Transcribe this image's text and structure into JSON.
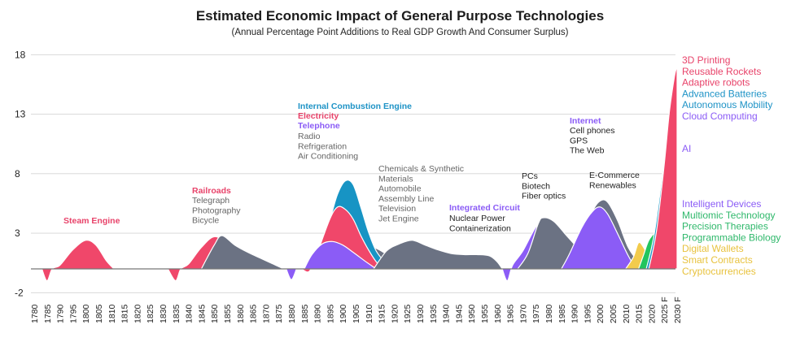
{
  "chart_data": {
    "type": "area",
    "title": "Estimated Economic Impact of General Purpose Technologies",
    "subtitle": "(Annual Percentage Point Additions to Real GDP Growth And Consumer Surplus)",
    "ylim": [
      -2,
      18
    ],
    "yticks": [
      18,
      13,
      8,
      3,
      -2
    ],
    "x_ticks": [
      "1780",
      "1785",
      "1790",
      "1795",
      "1800",
      "1805",
      "1810",
      "1815",
      "1820",
      "1825",
      "1830",
      "1835",
      "1840",
      "1845",
      "1850",
      "1855",
      "1860",
      "1865",
      "1870",
      "1875",
      "1880",
      "1885",
      "1890",
      "1895",
      "1900",
      "1905",
      "1910",
      "1915",
      "1920",
      "1925",
      "1930",
      "1935",
      "1940",
      "1945",
      "1950",
      "1955",
      "1960",
      "1965",
      "1970",
      "1975",
      "1980",
      "1985",
      "1990",
      "1995",
      "2000",
      "2005",
      "2010",
      "2015",
      "2020",
      "2025 F",
      "2030 F"
    ],
    "grid": "horizontal",
    "colors": {
      "pink": "#f0476a",
      "blue": "#1794c4",
      "purple": "#8b5cf6",
      "gray": "#6b7283",
      "green": "#22c55e",
      "teal": "#14b8a6",
      "yellow": "#f2cb4c",
      "pink_label": "#e8436a",
      "blue_label": "#1e93c6",
      "purple_label": "#8b5cf6",
      "green_label": "#2fb86b",
      "yellow_label": "#e8c23d"
    },
    "series": [
      {
        "key": "steam_engine",
        "color": "pink",
        "points": [
          [
            1783,
            0
          ],
          [
            1785,
            -1
          ],
          [
            1787,
            0
          ],
          [
            1790,
            0.3
          ],
          [
            1795,
            1.6
          ],
          [
            1800,
            2.4
          ],
          [
            1804,
            2.0
          ],
          [
            1808,
            0.7
          ],
          [
            1811,
            0
          ]
        ]
      },
      {
        "key": "railroads",
        "color": "pink",
        "points": [
          [
            1832,
            0
          ],
          [
            1835,
            -1
          ],
          [
            1837,
            0
          ],
          [
            1840,
            0.4
          ],
          [
            1845,
            1.8
          ],
          [
            1850,
            2.7
          ],
          [
            1855,
            2.1
          ],
          [
            1859,
            0.8
          ],
          [
            1862,
            0
          ]
        ]
      },
      {
        "key": "railroads_followers",
        "color": "gray",
        "points": [
          [
            1845,
            0
          ],
          [
            1850,
            2.0
          ],
          [
            1853,
            2.8
          ],
          [
            1858,
            2.0
          ],
          [
            1863,
            1.4
          ],
          [
            1868,
            0.9
          ],
          [
            1873,
            0.4
          ],
          [
            1877,
            0
          ]
        ]
      },
      {
        "key": "dip_1880",
        "color": "purple",
        "points": [
          [
            1878,
            0
          ],
          [
            1880,
            -0.9
          ],
          [
            1882,
            0
          ]
        ]
      },
      {
        "key": "ice_gray",
        "color": "gray",
        "points": [
          [
            1886,
            0
          ],
          [
            1890,
            0.9
          ],
          [
            1895,
            2.2
          ],
          [
            1900,
            3.5
          ],
          [
            1903,
            3.9
          ],
          [
            1906,
            3.0
          ],
          [
            1910,
            2.1
          ],
          [
            1915,
            1.5
          ],
          [
            1919,
            0.9
          ],
          [
            1921,
            0
          ]
        ]
      },
      {
        "key": "ice_blue",
        "color": "blue",
        "points": [
          [
            1886,
            0
          ],
          [
            1890,
            1.4
          ],
          [
            1895,
            4.2
          ],
          [
            1898,
            6.3
          ],
          [
            1901,
            7.4
          ],
          [
            1904,
            7.1
          ],
          [
            1907,
            5.2
          ],
          [
            1910,
            3.1
          ],
          [
            1913,
            1.5
          ],
          [
            1917,
            0.4
          ],
          [
            1919,
            0
          ]
        ]
      },
      {
        "key": "electricity",
        "color": "pink",
        "points": [
          [
            1884,
            0
          ],
          [
            1887,
            -0.2
          ],
          [
            1890,
            1.3
          ],
          [
            1895,
            4.2
          ],
          [
            1898,
            5.2
          ],
          [
            1901,
            5.0
          ],
          [
            1904,
            4.2
          ],
          [
            1907,
            2.8
          ],
          [
            1910,
            1.6
          ],
          [
            1913,
            0.6
          ],
          [
            1916,
            0
          ]
        ]
      },
      {
        "key": "telephone",
        "color": "purple",
        "points": [
          [
            1885,
            0
          ],
          [
            1888,
            1.2
          ],
          [
            1892,
            2.1
          ],
          [
            1896,
            2.3
          ],
          [
            1900,
            2.0
          ],
          [
            1904,
            1.4
          ],
          [
            1909,
            0.6
          ],
          [
            1913,
            0
          ]
        ]
      },
      {
        "key": "chemicals",
        "color": "gray",
        "points": [
          [
            1912,
            0
          ],
          [
            1917,
            1.5
          ],
          [
            1922,
            2.1
          ],
          [
            1927,
            2.4
          ],
          [
            1932,
            2.0
          ],
          [
            1937,
            1.6
          ],
          [
            1942,
            1.3
          ],
          [
            1947,
            1.2
          ],
          [
            1952,
            1.2
          ],
          [
            1957,
            1.1
          ],
          [
            1960,
            0.6
          ],
          [
            1962,
            0
          ]
        ]
      },
      {
        "key": "integrated_circuit",
        "color": "purple",
        "points": [
          [
            1962,
            0
          ],
          [
            1964,
            -1
          ],
          [
            1966,
            0.3
          ],
          [
            1970,
            1.5
          ],
          [
            1975,
            3.5
          ],
          [
            1978,
            4.0
          ],
          [
            1982,
            3.2
          ],
          [
            1987,
            1.8
          ],
          [
            1992,
            0.8
          ],
          [
            1996,
            0
          ]
        ]
      },
      {
        "key": "pcs",
        "color": "gray",
        "points": [
          [
            1968,
            0
          ],
          [
            1972,
            1.3
          ],
          [
            1976,
            3.8
          ],
          [
            1978,
            4.3
          ],
          [
            1982,
            4.0
          ],
          [
            1987,
            2.8
          ],
          [
            1992,
            1.6
          ],
          [
            1996,
            0.7
          ],
          [
            1999,
            0
          ]
        ]
      },
      {
        "key": "internet_gray",
        "color": "gray",
        "points": [
          [
            1987,
            0
          ],
          [
            1993,
            2.5
          ],
          [
            1997,
            4.8
          ],
          [
            2000,
            5.7
          ],
          [
            2003,
            5.6
          ],
          [
            2007,
            4.0
          ],
          [
            2011,
            1.8
          ],
          [
            2015,
            0.6
          ],
          [
            2018,
            0
          ]
        ]
      },
      {
        "key": "internet",
        "color": "purple",
        "points": [
          [
            1985,
            0
          ],
          [
            1988,
            1.2
          ],
          [
            1993,
            3.5
          ],
          [
            1997,
            4.8
          ],
          [
            2000,
            5.2
          ],
          [
            2003,
            4.6
          ],
          [
            2007,
            2.9
          ],
          [
            2011,
            1.1
          ],
          [
            2014,
            0.1
          ],
          [
            2016,
            0
          ]
        ]
      },
      {
        "key": "digital_wallets",
        "color": "yellow",
        "points": [
          [
            2010,
            0
          ],
          [
            2013,
            1.0
          ],
          [
            2015,
            2.2
          ],
          [
            2017,
            1.8
          ],
          [
            2019,
            1.0
          ],
          [
            2021,
            1.2
          ],
          [
            2024,
            1.5
          ],
          [
            2027,
            2.0
          ],
          [
            2030,
            2.5
          ],
          [
            2030,
            0
          ]
        ]
      },
      {
        "key": "precision",
        "color": "green",
        "points": [
          [
            2015,
            0
          ],
          [
            2017,
            1.2
          ],
          [
            2019,
            2.4
          ],
          [
            2022,
            3.2
          ],
          [
            2025,
            3.6
          ],
          [
            2028,
            4.0
          ],
          [
            2030,
            4.2
          ],
          [
            2030,
            0
          ]
        ]
      },
      {
        "key": "ai",
        "color": "purple",
        "points": [
          [
            2018,
            0
          ],
          [
            2020,
            1.2
          ],
          [
            2022,
            2.8
          ],
          [
            2024,
            5.8
          ],
          [
            2026,
            9.3
          ],
          [
            2028,
            11.8
          ],
          [
            2030,
            12.8
          ],
          [
            2030,
            0
          ]
        ]
      },
      {
        "key": "autonomy",
        "color": "blue",
        "points": [
          [
            2018,
            0
          ],
          [
            2021,
            2.8
          ],
          [
            2024,
            7.5
          ],
          [
            2026,
            11.3
          ],
          [
            2028,
            14.3
          ],
          [
            2030,
            15.7
          ],
          [
            2030,
            0
          ]
        ]
      },
      {
        "key": "rockets",
        "color": "pink",
        "points": [
          [
            2019,
            0
          ],
          [
            2022,
            3.2
          ],
          [
            2025,
            8.8
          ],
          [
            2027,
            13.2
          ],
          [
            2029,
            16.2
          ],
          [
            2030,
            17.0
          ],
          [
            2030,
            0
          ]
        ]
      }
    ]
  },
  "annotations": {
    "steam_engine": "Steam Engine",
    "railroads": "Railroads",
    "railroads_items": [
      "Telegraph",
      "Photography",
      "Bicycle"
    ],
    "ice": "Internal Combustion Engine",
    "electricity": "Electricity",
    "telephone": "Telephone",
    "ice_items": [
      "Radio",
      "Refrigeration",
      "Air Conditioning"
    ],
    "chem_items": [
      "Chemicals & Synthetic",
      "Materials",
      "Automobile",
      "Assembly Line",
      "Television",
      "Jet Engine"
    ],
    "integrated_circuit": "Integrated Circuit",
    "ic_items": [
      "Nuclear Power",
      "Containerization"
    ],
    "pc_items": [
      "PCs",
      "Biotech",
      "Fiber optics"
    ],
    "internet": "Internet",
    "internet_items": [
      "Cell phones",
      "GPS",
      "The Web"
    ],
    "ecom_items": [
      "E-Commerce",
      "Renewables"
    ]
  },
  "legend": {
    "top": [
      {
        "label": "3D Printing",
        "color": "pink_label"
      },
      {
        "label": "Reusable Rockets",
        "color": "pink_label"
      },
      {
        "label": "Adaptive robots",
        "color": "pink_label"
      },
      {
        "label": "Advanced Batteries",
        "color": "blue_label"
      },
      {
        "label": "Autonomous Mobility",
        "color": "blue_label"
      },
      {
        "label": "Cloud Computing",
        "color": "purple_label"
      }
    ],
    "ai": {
      "label": "AI",
      "color": "purple_label"
    },
    "bottom": [
      {
        "label": "Intelligent Devices",
        "color": "purple_label"
      },
      {
        "label": "Multiomic Technology",
        "color": "green_label"
      },
      {
        "label": "Precision Therapies",
        "color": "green_label"
      },
      {
        "label": "Programmable Biology",
        "color": "green_label"
      },
      {
        "label": "Digital Wallets",
        "color": "yellow_label"
      },
      {
        "label": "Smart Contracts",
        "color": "yellow_label"
      },
      {
        "label": "Cryptocurrencies",
        "color": "yellow_label"
      }
    ]
  }
}
